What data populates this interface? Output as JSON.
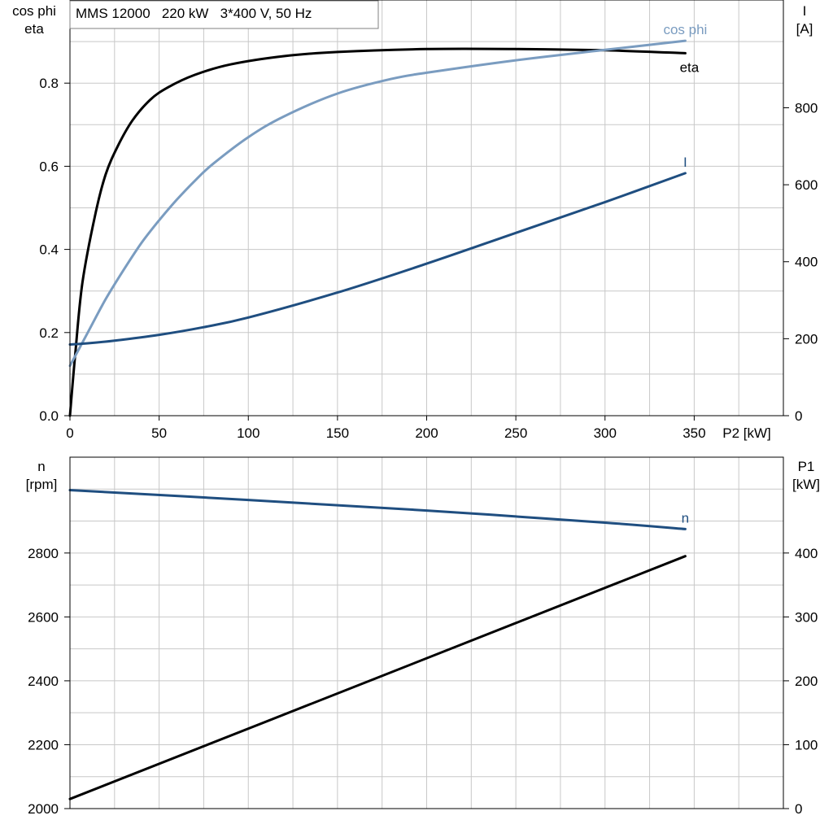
{
  "chart_data": [
    {
      "type": "line",
      "title": "MMS 12000   220 kW   3*400 V, 50 Hz",
      "xlabel": "P2 [kW]",
      "xlim": [
        0,
        400
      ],
      "xticks": [
        "0",
        "50",
        "100",
        "150",
        "200",
        "250",
        "300",
        "350"
      ],
      "ylabel_left": [
        "cos phi",
        "eta"
      ],
      "ylim_left": [
        0,
        1.0
      ],
      "yticks_left": [
        "0.0",
        "0.2",
        "0.4",
        "0.6",
        "0.8"
      ],
      "ylabel_right": [
        "I",
        "[A]"
      ],
      "ylim_right": [
        0,
        1080
      ],
      "yticks_right": [
        "0",
        "200",
        "400",
        "600",
        "800"
      ],
      "grid": true,
      "series": [
        {
          "name": "eta",
          "axis": "left",
          "color": "#000000",
          "x": [
            0,
            3,
            7,
            14,
            20,
            27,
            35,
            45,
            55,
            70,
            90,
            120,
            150,
            200,
            250,
            300,
            345
          ],
          "y": [
            0.0,
            0.15,
            0.32,
            0.48,
            0.58,
            0.65,
            0.71,
            0.76,
            0.79,
            0.82,
            0.845,
            0.865,
            0.875,
            0.882,
            0.882,
            0.879,
            0.872
          ]
        },
        {
          "name": "cos phi",
          "axis": "left",
          "color": "#7a9cc0",
          "x": [
            0,
            10,
            20,
            30,
            40,
            50,
            60,
            70,
            80,
            100,
            120,
            150,
            180,
            200,
            250,
            300,
            345
          ],
          "y": [
            0.12,
            0.2,
            0.28,
            0.35,
            0.415,
            0.47,
            0.52,
            0.565,
            0.605,
            0.67,
            0.72,
            0.775,
            0.81,
            0.825,
            0.855,
            0.88,
            0.902
          ]
        },
        {
          "name": "I",
          "axis": "right",
          "color": "#1f4e80",
          "x": [
            0,
            10,
            25,
            50,
            75,
            100,
            150,
            200,
            250,
            300,
            345
          ],
          "y": [
            185,
            188,
            195,
            210,
            230,
            255,
            320,
            395,
            475,
            555,
            630
          ]
        }
      ]
    },
    {
      "type": "line",
      "xlim": [
        0,
        400
      ],
      "ylabel_left": [
        "n",
        "[rpm]"
      ],
      "ylim_left": [
        2000,
        3100
      ],
      "yticks_left": [
        "2000",
        "2200",
        "2400",
        "2600",
        "2800"
      ],
      "ylabel_right": [
        "P1",
        "[kW]"
      ],
      "ylim_right": [
        0,
        550
      ],
      "yticks_right": [
        "0",
        "100",
        "200",
        "300",
        "400"
      ],
      "grid": true,
      "series": [
        {
          "name": "n",
          "axis": "left",
          "color": "#1f4e80",
          "x": [
            0,
            100,
            200,
            300,
            345
          ],
          "y": [
            2997,
            2966,
            2933,
            2895,
            2875
          ]
        },
        {
          "axis": "right",
          "color": "#000000",
          "x": [
            0,
            345
          ],
          "y": [
            15,
            395
          ]
        }
      ]
    }
  ]
}
